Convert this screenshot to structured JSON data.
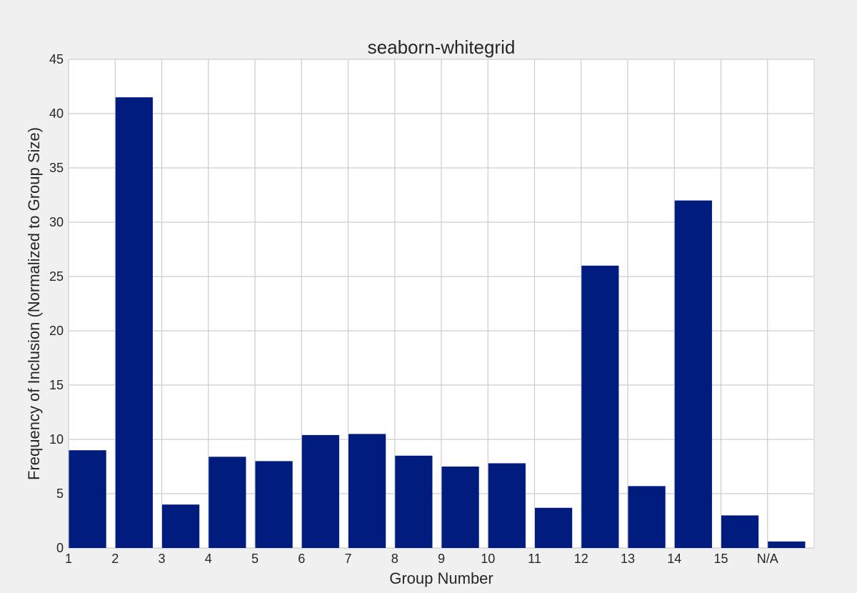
{
  "chart_data": {
    "type": "bar",
    "title": "seaborn-whitegrid",
    "xlabel": "Group Number",
    "ylabel": "Frequency of Inclusion (Normalized to Group Size)",
    "categories": [
      "1",
      "2",
      "3",
      "4",
      "5",
      "6",
      "7",
      "8",
      "9",
      "10",
      "11",
      "12",
      "13",
      "14",
      "15",
      "N/A"
    ],
    "values": [
      9.0,
      41.5,
      4.0,
      8.4,
      8.0,
      10.4,
      10.5,
      8.5,
      7.5,
      7.8,
      3.7,
      26.0,
      5.7,
      32.0,
      3.0,
      0.6
    ],
    "ylim": [
      0,
      45
    ],
    "yticks": [
      0,
      5,
      10,
      15,
      20,
      25,
      30,
      35,
      40,
      45
    ],
    "grid": true,
    "colors": {
      "bar": "#001c7f",
      "background": "#ffffff",
      "figure": "#f0f0f0",
      "grid": "#cccccc"
    }
  }
}
